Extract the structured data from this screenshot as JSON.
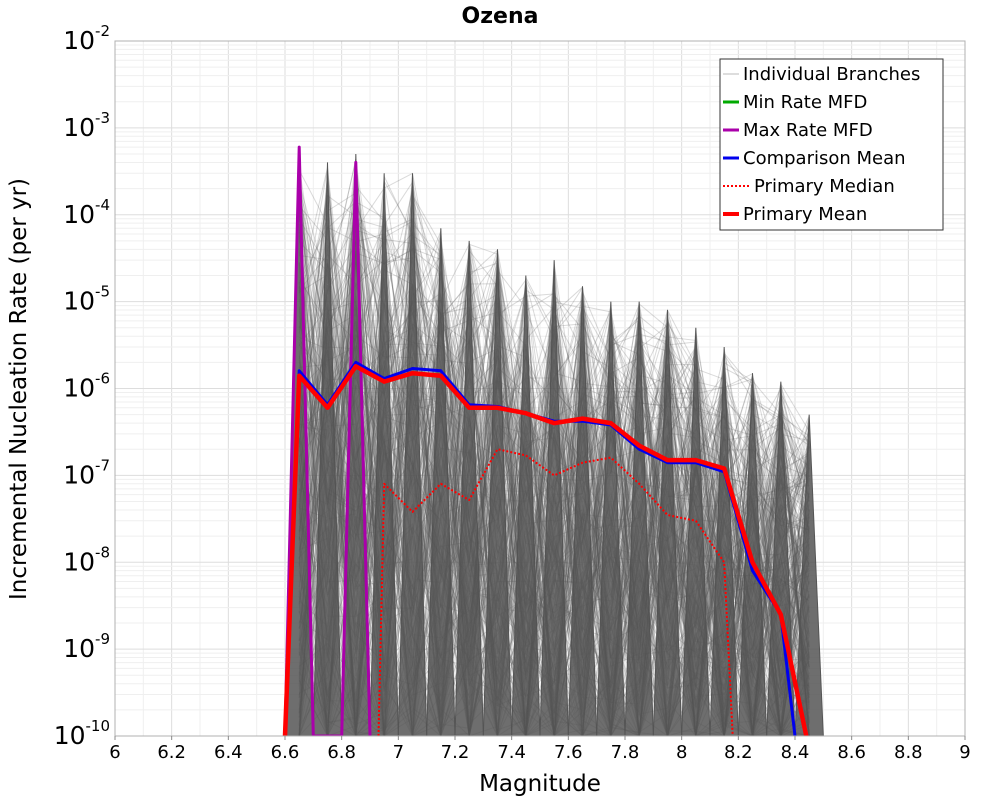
{
  "chart_data": {
    "type": "line",
    "title": "Ozena",
    "xlabel": "Magnitude",
    "ylabel": "Incremental Nucleation Rate (per yr)",
    "xlim": [
      6.0,
      9.0
    ],
    "ylim": [
      1e-10,
      0.01
    ],
    "yscale": "log",
    "grid": true,
    "legend_position": "top-right",
    "x_ticks": [
      "6",
      "6.2",
      "6.4",
      "6.6",
      "6.8",
      "7",
      "7.2",
      "7.4",
      "7.6",
      "7.8",
      "8",
      "8.2",
      "8.4",
      "8.6",
      "8.8",
      "9"
    ],
    "y_ticks": [
      {
        "base": "10",
        "exp": "-10",
        "value": 1e-10
      },
      {
        "base": "10",
        "exp": "-9",
        "value": 1e-09
      },
      {
        "base": "10",
        "exp": "-8",
        "value": 1e-08
      },
      {
        "base": "10",
        "exp": "-7",
        "value": 1e-07
      },
      {
        "base": "10",
        "exp": "-6",
        "value": 1e-06
      },
      {
        "base": "10",
        "exp": "-5",
        "value": 1e-05
      },
      {
        "base": "10",
        "exp": "-4",
        "value": 0.0001
      },
      {
        "base": "10",
        "exp": "-3",
        "value": 0.001
      },
      {
        "base": "10",
        "exp": "-2",
        "value": 0.01
      }
    ],
    "series": [
      {
        "name": "Individual Branches",
        "color": "#555555",
        "style": "thin",
        "peak_magnitudes": [
          6.65,
          6.75,
          6.85,
          6.95,
          7.05,
          7.15,
          7.25,
          7.35,
          7.45,
          7.55,
          7.65,
          7.75,
          7.85,
          7.95,
          8.05,
          8.15,
          8.25,
          8.35,
          8.45
        ],
        "peak_values": [
          0.0004,
          0.0004,
          0.0005,
          0.0003,
          0.0003,
          7e-05,
          5e-05,
          4e-05,
          2e-05,
          3e-05,
          1.5e-05,
          1e-05,
          1e-05,
          8e-06,
          5e-06,
          3e-06,
          1.5e-06,
          1.2e-06,
          5e-07
        ]
      },
      {
        "name": "Min Rate MFD",
        "color": "#00aa00",
        "style": "solid",
        "x": [],
        "y": []
      },
      {
        "name": "Max Rate MFD",
        "color": "#aa00aa",
        "style": "solid",
        "x": [
          6.6,
          6.65,
          6.7,
          6.75,
          6.8,
          6.85,
          6.9
        ],
        "y": [
          1e-10,
          0.0006,
          1e-10,
          1e-10,
          1e-10,
          0.0004,
          1e-10
        ]
      },
      {
        "name": "Comparison Mean",
        "color": "#0000ee",
        "style": "solid",
        "x": [
          6.6,
          6.65,
          6.75,
          6.85,
          6.95,
          7.05,
          7.15,
          7.25,
          7.35,
          7.45,
          7.55,
          7.65,
          7.75,
          7.85,
          7.95,
          8.05,
          8.15,
          8.25,
          8.35,
          8.4
        ],
        "y": [
          1e-10,
          1.6e-06,
          6.5e-07,
          2e-06,
          1.3e-06,
          1.7e-06,
          1.6e-06,
          6.5e-07,
          6.2e-07,
          5.2e-07,
          4.2e-07,
          4.2e-07,
          3.8e-07,
          2e-07,
          1.4e-07,
          1.4e-07,
          1.1e-07,
          8e-09,
          2.5e-09,
          1e-10
        ]
      },
      {
        "name": "Primary Median",
        "color": "#ff0000",
        "style": "dotted",
        "x": [
          6.93,
          6.95,
          7.05,
          7.15,
          7.25,
          7.35,
          7.45,
          7.55,
          7.65,
          7.75,
          7.85,
          7.95,
          8.05,
          8.15,
          8.18
        ],
        "y": [
          1e-10,
          8e-08,
          3.8e-08,
          8e-08,
          5.2e-08,
          2e-07,
          1.7e-07,
          1e-07,
          1.4e-07,
          1.6e-07,
          8e-08,
          3.5e-08,
          3e-08,
          1e-08,
          1e-10
        ]
      },
      {
        "name": "Primary Mean",
        "color": "#ff0000",
        "style": "thick",
        "x": [
          6.6,
          6.65,
          6.75,
          6.85,
          6.95,
          7.05,
          7.15,
          7.25,
          7.35,
          7.45,
          7.55,
          7.65,
          7.75,
          7.85,
          7.95,
          8.05,
          8.15,
          8.25,
          8.35,
          8.44
        ],
        "y": [
          1e-10,
          1.4e-06,
          6e-07,
          1.8e-06,
          1.2e-06,
          1.5e-06,
          1.4e-06,
          6e-07,
          6e-07,
          5.2e-07,
          4e-07,
          4.5e-07,
          4e-07,
          2.2e-07,
          1.5e-07,
          1.5e-07,
          1.2e-07,
          1e-08,
          2.5e-09,
          1e-10
        ]
      }
    ]
  }
}
